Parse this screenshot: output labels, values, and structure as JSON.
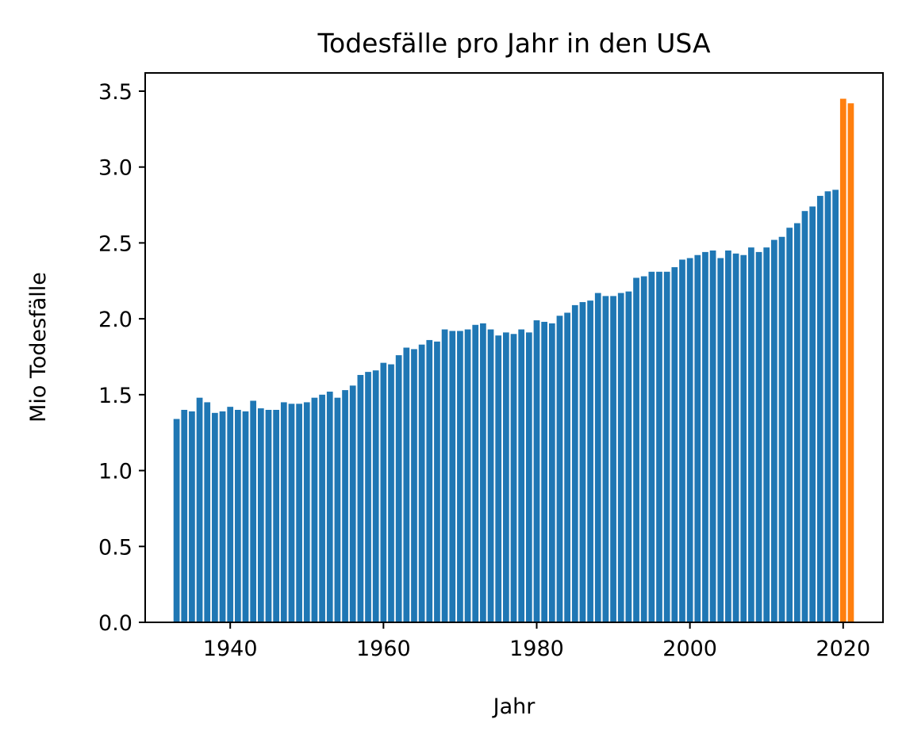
{
  "chart_data": {
    "type": "bar",
    "title": "Todesfälle pro Jahr in den USA",
    "xlabel": "Jahr",
    "ylabel": "Mio Todesfälle",
    "xlim": [
      1928.9,
      2025.2
    ],
    "ylim": [
      0,
      3.62
    ],
    "xticks": [
      1940,
      1960,
      1980,
      2000,
      2020
    ],
    "yticks": [
      "0.0",
      "0.5",
      "1.0",
      "1.5",
      "2.0",
      "2.5",
      "3.0",
      "3.5"
    ],
    "grid": false,
    "colors": {
      "base": "#1f77b4",
      "highlight": "#ff7f0e"
    },
    "highlight_years": [
      2020,
      2021
    ],
    "start_year": 1933,
    "values": [
      1.34,
      1.4,
      1.39,
      1.48,
      1.45,
      1.38,
      1.39,
      1.42,
      1.4,
      1.39,
      1.46,
      1.41,
      1.4,
      1.4,
      1.45,
      1.44,
      1.44,
      1.45,
      1.48,
      1.5,
      1.52,
      1.48,
      1.53,
      1.56,
      1.63,
      1.65,
      1.66,
      1.71,
      1.7,
      1.76,
      1.81,
      1.8,
      1.83,
      1.86,
      1.85,
      1.93,
      1.92,
      1.92,
      1.93,
      1.96,
      1.97,
      1.93,
      1.89,
      1.91,
      1.9,
      1.93,
      1.91,
      1.99,
      1.98,
      1.97,
      2.02,
      2.04,
      2.09,
      2.11,
      2.12,
      2.17,
      2.15,
      2.15,
      2.17,
      2.18,
      2.27,
      2.28,
      2.31,
      2.31,
      2.31,
      2.34,
      2.39,
      2.4,
      2.42,
      2.44,
      2.45,
      2.4,
      2.45,
      2.43,
      2.42,
      2.47,
      2.44,
      2.47,
      2.52,
      2.54,
      2.6,
      2.63,
      2.71,
      2.74,
      2.81,
      2.84,
      2.85,
      3.45,
      3.42
    ]
  }
}
